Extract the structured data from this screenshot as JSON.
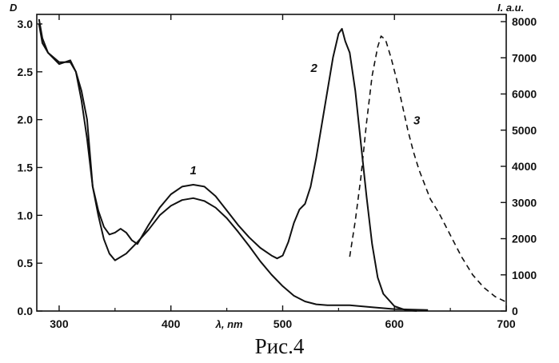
{
  "caption": "Рис.4",
  "chart_data": {
    "type": "line",
    "grid": false,
    "x_axis": {
      "label": "λ, nm",
      "range": [
        280,
        700
      ],
      "ticks": [
        300,
        400,
        500,
        600,
        700
      ],
      "tick_labels": [
        "300",
        "400",
        "500",
        "600",
        "700"
      ]
    },
    "y_left": {
      "label": "D",
      "range": [
        0,
        3.1
      ],
      "ticks": [
        0,
        0.5,
        1,
        1.5,
        2,
        2.5,
        3
      ],
      "tick_labels": [
        "0.0",
        "0.5",
        "1.0",
        "1.5",
        "2.0",
        "2.5",
        "3.0"
      ]
    },
    "y_right": {
      "label": "I. a.u.",
      "range": [
        0,
        8200
      ],
      "ticks": [
        0,
        1000,
        2000,
        3000,
        4000,
        5000,
        6000,
        7000,
        8000
      ],
      "tick_labels": [
        "0",
        "1000",
        "2000",
        "3000",
        "4000",
        "5000",
        "6000",
        "7000",
        "8000"
      ]
    },
    "series": [
      {
        "name": "1",
        "axis": "left",
        "style": "solid",
        "x": [
          282,
          285,
          290,
          300,
          310,
          315,
          320,
          325,
          330,
          335,
          340,
          345,
          350,
          360,
          370,
          380,
          390,
          400,
          410,
          420,
          430,
          440,
          450,
          460,
          470,
          480,
          490,
          500,
          510,
          520,
          530,
          540,
          550,
          560,
          570,
          580,
          600,
          630
        ],
        "y": [
          3.0,
          2.8,
          2.7,
          2.6,
          2.6,
          2.5,
          2.3,
          2.0,
          1.3,
          1.0,
          0.75,
          0.6,
          0.53,
          0.6,
          0.72,
          0.85,
          1.0,
          1.1,
          1.16,
          1.18,
          1.15,
          1.08,
          0.97,
          0.83,
          0.68,
          0.52,
          0.38,
          0.26,
          0.16,
          0.1,
          0.07,
          0.06,
          0.06,
          0.06,
          0.05,
          0.04,
          0.02,
          0.01
        ]
      },
      {
        "name": "2",
        "axis": "left",
        "style": "solid",
        "x": [
          282,
          285,
          290,
          300,
          305,
          310,
          315,
          320,
          325,
          330,
          335,
          340,
          345,
          350,
          355,
          360,
          365,
          370,
          380,
          390,
          400,
          410,
          420,
          430,
          440,
          450,
          460,
          470,
          480,
          490,
          495,
          500,
          505,
          510,
          515,
          520,
          525,
          530,
          535,
          540,
          545,
          550,
          553,
          556,
          560,
          565,
          570,
          575,
          580,
          585,
          590,
          600,
          610,
          620
        ],
        "y": [
          3.05,
          2.85,
          2.7,
          2.58,
          2.6,
          2.62,
          2.5,
          2.2,
          1.8,
          1.3,
          1.05,
          0.88,
          0.8,
          0.82,
          0.86,
          0.82,
          0.74,
          0.7,
          0.9,
          1.08,
          1.22,
          1.3,
          1.32,
          1.3,
          1.2,
          1.05,
          0.9,
          0.77,
          0.66,
          0.58,
          0.55,
          0.58,
          0.72,
          0.92,
          1.06,
          1.12,
          1.3,
          1.6,
          1.95,
          2.3,
          2.65,
          2.9,
          2.95,
          2.82,
          2.7,
          2.3,
          1.75,
          1.2,
          0.7,
          0.35,
          0.18,
          0.05,
          0.01,
          0.0
        ]
      },
      {
        "name": "3",
        "axis": "right",
        "style": "dashed",
        "x": [
          560,
          565,
          570,
          575,
          580,
          585,
          588,
          592,
          597,
          602,
          607,
          612,
          617,
          622,
          627,
          632,
          640,
          650,
          660,
          670,
          680,
          690,
          700
        ],
        "y": [
          1500,
          2500,
          3700,
          5200,
          6500,
          7300,
          7600,
          7500,
          7000,
          6400,
          5700,
          5000,
          4400,
          3900,
          3500,
          3100,
          2700,
          2100,
          1500,
          1000,
          650,
          400,
          250
        ]
      }
    ],
    "annotations": [
      {
        "text": "1",
        "x": 420,
        "y": 1.43
      },
      {
        "text": "2",
        "x": 528,
        "y": 2.5
      },
      {
        "text": "3",
        "x": 620,
        "y": 1.95
      }
    ]
  }
}
